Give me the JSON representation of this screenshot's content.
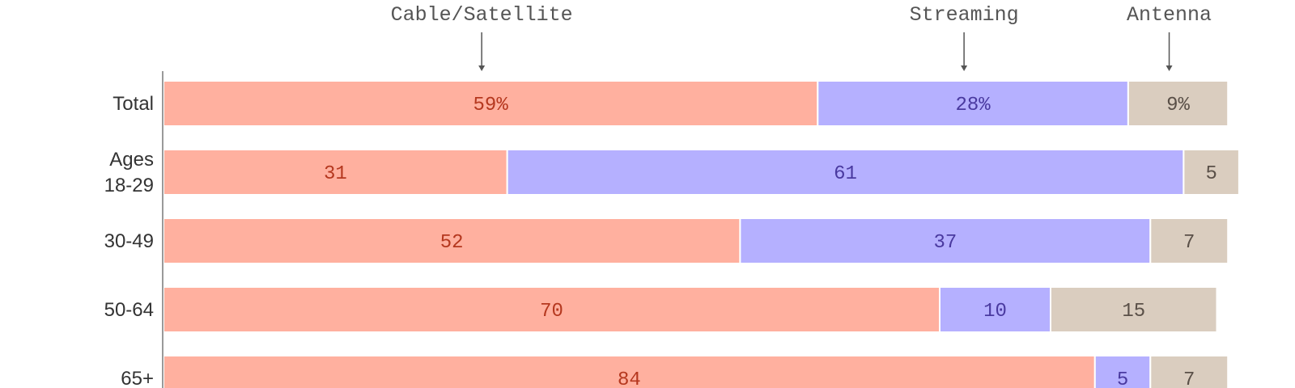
{
  "chart_data": {
    "type": "bar",
    "orientation": "horizontal",
    "stacked": true,
    "categories": [
      [
        "Total"
      ],
      [
        "Ages",
        "18-29"
      ],
      [
        "30-49"
      ],
      [
        "50-64"
      ],
      [
        "65+"
      ]
    ],
    "series": [
      {
        "name": "Cable/Satellite",
        "values": [
          59,
          31,
          52,
          70,
          84
        ],
        "labels": [
          "59%",
          "31",
          "52",
          "70",
          "84"
        ],
        "color": "#ffb09f",
        "text_color": "#b5381f"
      },
      {
        "name": "Streaming",
        "values": [
          28,
          61,
          37,
          10,
          5
        ],
        "labels": [
          "28%",
          "61",
          "37",
          "10",
          "5"
        ],
        "color": "#b5b0ff",
        "text_color": "#4a3aa0"
      },
      {
        "name": "Antenna",
        "values": [
          9,
          5,
          7,
          15,
          7
        ],
        "labels": [
          "9%",
          "5",
          "7",
          "15",
          "7"
        ],
        "color": "#dacdbf",
        "text_color": "#5a5048"
      }
    ],
    "legend_placement": "top, labels with arrows pointing to segments of the first bar",
    "grid": false
  }
}
